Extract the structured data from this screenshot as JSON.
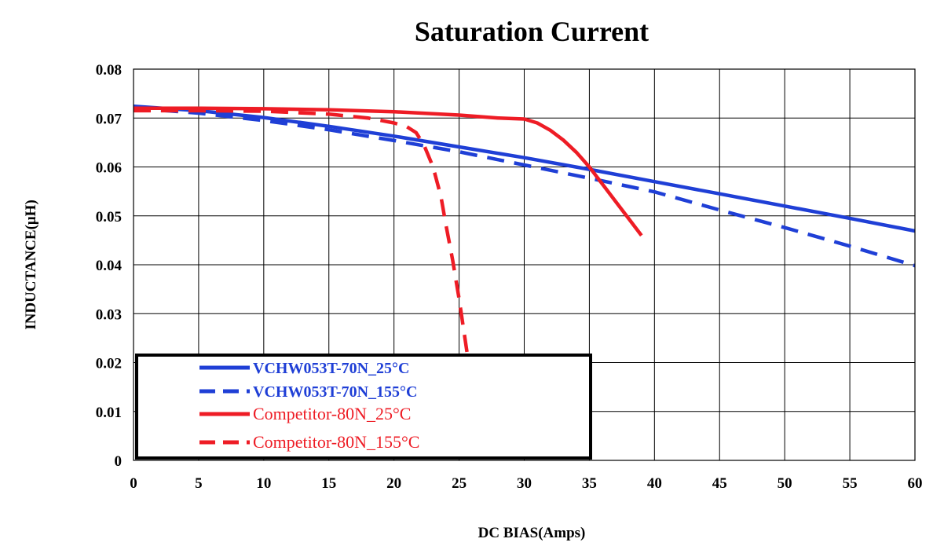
{
  "chart_data": {
    "type": "line",
    "title": "Saturation Current",
    "xlabel": "DC BIAS(Amps)",
    "ylabel": "INDUCTANCE(μH)",
    "xlim": [
      0,
      60
    ],
    "ylim": [
      0,
      0.08
    ],
    "x_ticks": [
      0,
      5,
      10,
      15,
      20,
      25,
      30,
      35,
      40,
      45,
      50,
      55,
      60
    ],
    "x_tick_labels": [
      "0",
      "5",
      "10",
      "15",
      "20",
      "25",
      "30",
      "35",
      "40",
      "45",
      "50",
      "55",
      "60"
    ],
    "y_ticks": [
      0,
      0.01,
      0.02,
      0.03,
      0.04,
      0.05,
      0.06,
      0.07,
      0.08
    ],
    "y_tick_labels": [
      "0",
      "0.01",
      "0.02",
      "0.03",
      "0.04",
      "0.05",
      "0.06",
      "0.07",
      "0.08"
    ],
    "grid": true,
    "legend_position": "bottom-left",
    "series": [
      {
        "name": "VCHW053T-70N_25°C",
        "color": "#1f3fd6",
        "dash": "solid",
        "x": [
          0,
          5,
          10,
          15,
          20,
          25,
          30,
          35,
          40,
          45,
          50,
          55,
          60
        ],
        "y": [
          0.0724,
          0.0715,
          0.0701,
          0.0683,
          0.0663,
          0.0641,
          0.0619,
          0.0595,
          0.057,
          0.0545,
          0.052,
          0.0495,
          0.0469
        ]
      },
      {
        "name": "VCHW053T-70N_155°C",
        "color": "#1f3fd6",
        "dash": "dashed",
        "x": [
          0,
          5,
          10,
          15,
          20,
          25,
          30,
          35,
          40,
          45,
          50,
          55,
          60
        ],
        "y": [
          0.072,
          0.071,
          0.0695,
          0.0676,
          0.0654,
          0.0631,
          0.0604,
          0.0577,
          0.0549,
          0.0512,
          0.0476,
          0.0438,
          0.0398
        ]
      },
      {
        "name": "Competitor-80N_25°C",
        "color": "#ee1c25",
        "dash": "solid",
        "x": [
          0,
          5,
          10,
          15,
          20,
          25,
          28,
          30,
          31,
          32,
          33,
          34,
          35,
          36,
          37,
          38,
          39
        ],
        "y": [
          0.072,
          0.072,
          0.0719,
          0.0717,
          0.0713,
          0.0706,
          0.07,
          0.0698,
          0.069,
          0.0675,
          0.0655,
          0.063,
          0.06,
          0.0565,
          0.053,
          0.0495,
          0.046
        ]
      },
      {
        "name": "Competitor-80N_155°C",
        "color": "#ee1c25",
        "dash": "dashed",
        "x": [
          0,
          5,
          10,
          15,
          18,
          20,
          21,
          21.7,
          22.3,
          23,
          23.6,
          24,
          24.5,
          25,
          25.5,
          26,
          26.3
        ],
        "y": [
          0.0715,
          0.0715,
          0.0714,
          0.0708,
          0.07,
          0.069,
          0.0682,
          0.067,
          0.0645,
          0.06,
          0.054,
          0.048,
          0.041,
          0.033,
          0.024,
          0.015,
          0.005
        ]
      }
    ]
  }
}
